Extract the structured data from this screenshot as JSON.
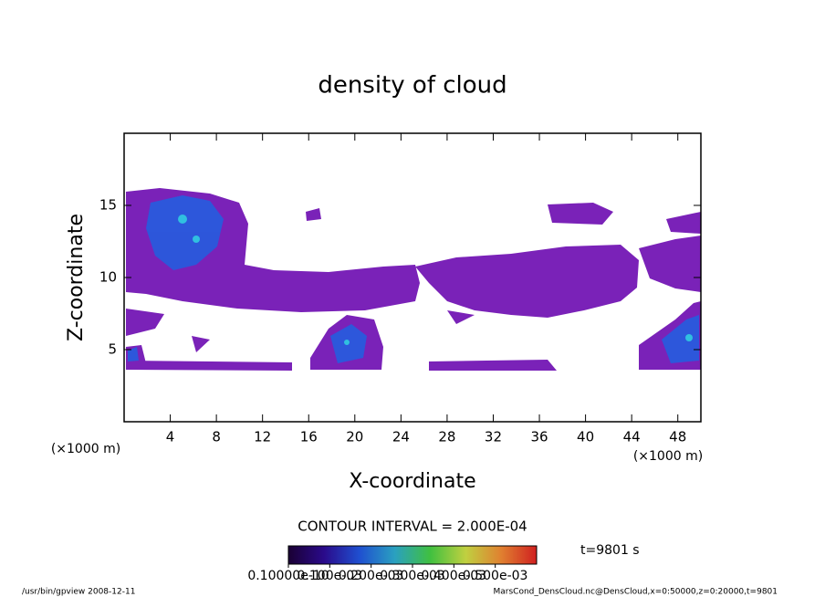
{
  "chart_data": {
    "type": "contour",
    "title": "density of cloud",
    "x_label": "X-coordinate",
    "y_label": "Z-coordinate",
    "x_unit": "(×1000 m)",
    "y_unit": "(×1000 m)",
    "xlim": [
      0,
      50
    ],
    "xticks": [
      4,
      8,
      12,
      16,
      20,
      24,
      28,
      32,
      36,
      40,
      44,
      48
    ],
    "ylim": [
      0,
      20
    ],
    "yticks": [
      5,
      10,
      15
    ],
    "contour_interval": "CONTOUR INTERVAL = 2.000E-04",
    "time_label": "t=9801 s",
    "colorbar": {
      "colors": [
        "#1a0033",
        "#2a0a8a",
        "#1f4fd0",
        "#2aa0c0",
        "#40c040",
        "#c0d040",
        "#e08030",
        "#d02020"
      ],
      "clim": [
        0,
        0.0006
      ],
      "ticks": [
        {
          "value": 1e-11,
          "label": "0.10000e-10"
        },
        {
          "value": 0.0001,
          "label": "0.100e-03"
        },
        {
          "value": 0.0002,
          "label": "0.200e-03"
        },
        {
          "value": 0.0003,
          "label": "0.300e-03"
        },
        {
          "value": 0.0004,
          "label": "0.400e-03"
        },
        {
          "value": 0.0005,
          "label": "0.500e-03"
        }
      ]
    },
    "footer_left": "/usr/bin/gpview  2008-12-11",
    "footer_right": "MarsCond_DensCloud.nc@DensCloud,x=0:50000,z=0:20000,t=9801"
  }
}
